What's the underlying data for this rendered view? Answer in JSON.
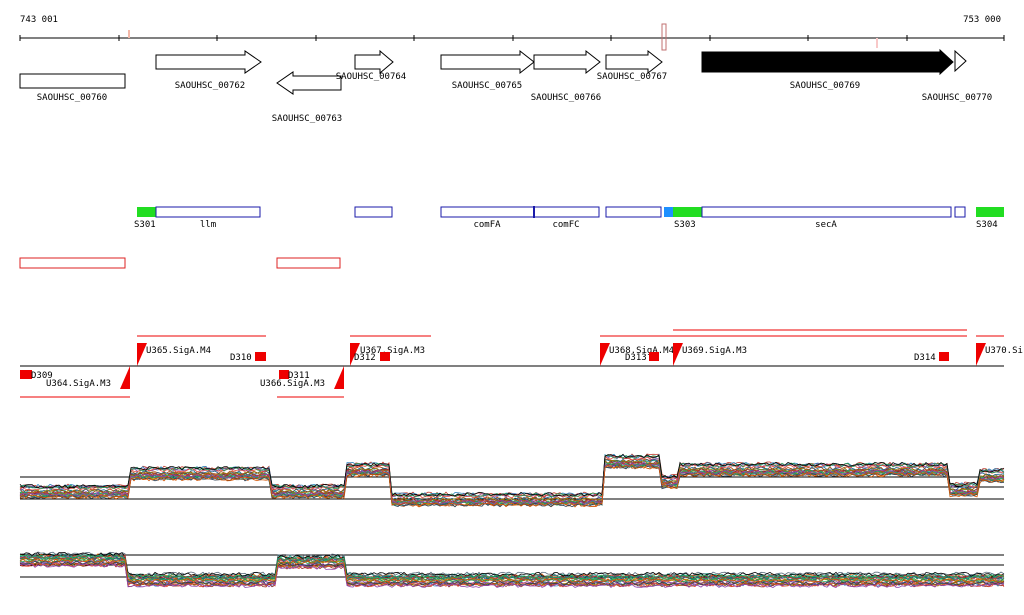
{
  "axis": {
    "start": "743 001",
    "end": "753 000"
  },
  "genes": [
    {
      "label": "SAOUHSC_00760",
      "strand": "none",
      "highlight": false
    },
    {
      "label": "SAOUHSC_00762",
      "strand": "+",
      "highlight": false
    },
    {
      "label": "SAOUHSC_00763",
      "strand": "-",
      "highlight": false
    },
    {
      "label": "SAOUHSC_00764",
      "strand": "+",
      "highlight": false
    },
    {
      "label": "SAOUHSC_00765",
      "strand": "+",
      "highlight": false
    },
    {
      "label": "SAOUHSC_00766",
      "strand": "+",
      "highlight": false
    },
    {
      "label": "SAOUHSC_00767",
      "strand": "+",
      "highlight": false
    },
    {
      "label": "SAOUHSC_00769",
      "strand": "+",
      "highlight": true
    },
    {
      "label": "SAOUHSC_00770",
      "strand": "+",
      "highlight": false
    }
  ],
  "segments": [
    {
      "label": "S301",
      "color": "#22dd22"
    },
    {
      "label": "S303",
      "color": "#22dd22"
    },
    {
      "label": "S304",
      "color": "#22dd22"
    }
  ],
  "annotations": [
    "llm",
    "comFA",
    "comFC",
    "secA"
  ],
  "regulatory_features": [
    {
      "label": "D309"
    },
    {
      "label": "U364.SigA.M3"
    },
    {
      "label": "U365.SigA.M4"
    },
    {
      "label": "D310"
    },
    {
      "label": "D311"
    },
    {
      "label": "U366.SigA.M3"
    },
    {
      "label": "U367.SigA.M3"
    },
    {
      "label": "D312"
    },
    {
      "label": "U368.SigA.M4"
    },
    {
      "label": "D313"
    },
    {
      "label": "U369.SigA.M3"
    },
    {
      "label": "D314"
    },
    {
      "label": "U370.Si"
    }
  ],
  "colors": {
    "gene_outline": "#000000",
    "gene_highlight": "#000000",
    "segment": "#22dd22",
    "annotation_outline": "#1a1aaa",
    "region_outline": "#dd2222",
    "feature_flag": "#ee0000",
    "marker_blue": "#1e90ff"
  }
}
